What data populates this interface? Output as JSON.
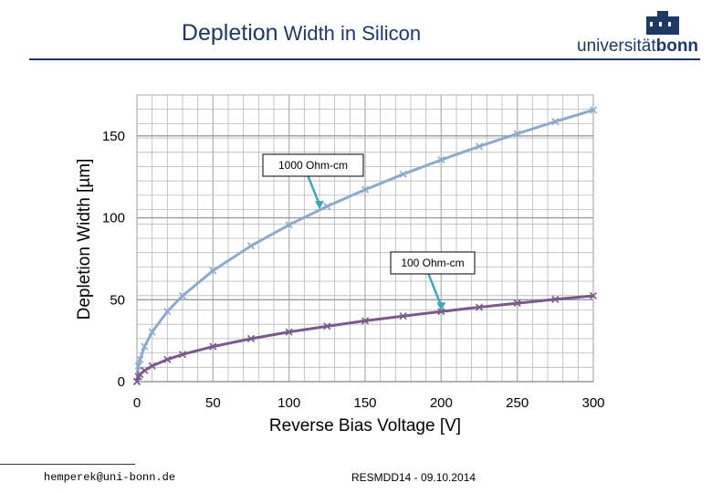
{
  "slide": {
    "title_main": "Depletion",
    "title_rest": " Width in Silicon",
    "logo_prefix": "universität",
    "logo_bold": "bonn",
    "footer_left": "hemperek@uni-bonn.de",
    "footer_center": "RESMDD14 - 09.10.2014"
  },
  "chart_data": {
    "type": "line",
    "title": "Depletion Width in Silicon",
    "xlabel": "Reverse Bias Voltage [V]",
    "ylabel": "Depletion Width [µm]",
    "xlim": [
      0,
      300
    ],
    "ylim": [
      0,
      175
    ],
    "xticks": [
      0,
      50,
      100,
      150,
      200,
      250,
      300
    ],
    "yticks": [
      0,
      50,
      100,
      150
    ],
    "grid": true,
    "series": [
      {
        "name": "1000 Ohm-cm",
        "color": "#8eaacb",
        "x": [
          0,
          1,
          2,
          5,
          10,
          20,
          30,
          50,
          75,
          100,
          125,
          150,
          175,
          200,
          225,
          250,
          275,
          300
        ],
        "y": [
          0,
          9.6,
          13.5,
          21.4,
          30.3,
          42.8,
          52.4,
          67.7,
          82.9,
          95.7,
          107.0,
          117.2,
          126.6,
          135.4,
          143.6,
          151.3,
          158.7,
          165.8
        ]
      },
      {
        "name": "100 Ohm-cm",
        "color": "#7a5a8c",
        "x": [
          0,
          1,
          2,
          5,
          10,
          20,
          30,
          50,
          75,
          100,
          125,
          150,
          175,
          200,
          225,
          250,
          275,
          300
        ],
        "y": [
          0,
          3.0,
          4.3,
          6.8,
          9.6,
          13.5,
          16.6,
          21.4,
          26.2,
          30.3,
          33.8,
          37.1,
          40.0,
          42.8,
          45.4,
          47.9,
          50.2,
          52.4
        ]
      }
    ],
    "annotations": [
      {
        "text": "1000 Ohm-cm",
        "series": 0,
        "point_x": 120
      },
      {
        "text": "100 Ohm-cm",
        "series": 1,
        "point_x": 200
      }
    ]
  }
}
